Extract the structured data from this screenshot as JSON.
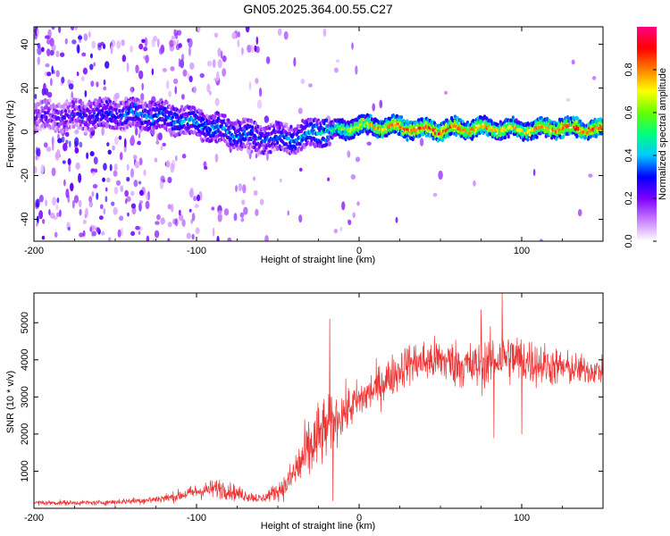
{
  "title": "GN05.2025.364.00.55.C27",
  "chart_data": [
    {
      "type": "heatmap",
      "name": "spectrogram",
      "xlabel": "Height of straight line (km)",
      "ylabel": "Frequency (Hz)",
      "xlim": [
        -200,
        150
      ],
      "ylim": [
        -50,
        48
      ],
      "xticks": [
        -200,
        -100,
        0,
        100
      ],
      "yticks": [
        -40,
        -20,
        0,
        20,
        40
      ],
      "colorbar": {
        "label": "Normalized spectral amplitude",
        "range": [
          0,
          1
        ],
        "ticks": [
          "0.0",
          "0.2",
          "0.4",
          "0.6",
          "0.8"
        ],
        "colors": [
          "#ffffff",
          "#c77dff",
          "#7b00ff",
          "#0000ff",
          "#00c8ff",
          "#00ff80",
          "#66ff00",
          "#ffff00",
          "#ff8000",
          "#ff0000",
          "#ff0080"
        ]
      },
      "ridge": [
        {
          "x": -195,
          "freq": 7,
          "amp": 0.2
        },
        {
          "x": -150,
          "freq": 8,
          "amp": 0.3
        },
        {
          "x": -130,
          "freq": 8,
          "amp": 0.35
        },
        {
          "x": -100,
          "freq": 4,
          "amp": 0.35
        },
        {
          "x": -80,
          "freq": 0,
          "amp": 0.35
        },
        {
          "x": -60,
          "freq": -3,
          "amp": 0.3
        },
        {
          "x": -40,
          "freq": -3,
          "amp": 0.35
        },
        {
          "x": -25,
          "freq": 0,
          "amp": 0.4
        },
        {
          "x": -10,
          "freq": 1,
          "amp": 0.6
        },
        {
          "x": 0,
          "freq": 3,
          "amp": 0.7
        },
        {
          "x": 25,
          "freq": 2,
          "amp": 0.8
        },
        {
          "x": 50,
          "freq": 1,
          "amp": 0.85
        },
        {
          "x": 75,
          "freq": 2,
          "amp": 0.75
        },
        {
          "x": 100,
          "freq": 1,
          "amp": 0.7
        },
        {
          "x": 125,
          "freq": 2,
          "amp": 0.8
        },
        {
          "x": 150,
          "freq": 1,
          "amp": 0.85
        }
      ]
    },
    {
      "type": "line",
      "name": "snr",
      "xlabel": "Height of straight line (km)",
      "ylabel": "SNR (10 * v/v)",
      "xlim": [
        -200,
        150
      ],
      "ylim": [
        0,
        5800
      ],
      "xticks": [
        -200,
        -100,
        0,
        100
      ],
      "yticks": [
        1000,
        2000,
        3000,
        4000,
        5000
      ],
      "color": "#ee3333",
      "envelope": [
        {
          "x": -200,
          "mean": 150,
          "spread": 60
        },
        {
          "x": -160,
          "mean": 150,
          "spread": 60
        },
        {
          "x": -130,
          "mean": 220,
          "spread": 90
        },
        {
          "x": -115,
          "mean": 300,
          "spread": 120
        },
        {
          "x": -100,
          "mean": 450,
          "spread": 180
        },
        {
          "x": -85,
          "mean": 550,
          "spread": 250
        },
        {
          "x": -75,
          "mean": 400,
          "spread": 180
        },
        {
          "x": -60,
          "mean": 250,
          "spread": 100
        },
        {
          "x": -45,
          "mean": 600,
          "spread": 300
        },
        {
          "x": -35,
          "mean": 1300,
          "spread": 700
        },
        {
          "x": -25,
          "mean": 1900,
          "spread": 900
        },
        {
          "x": -15,
          "mean": 2400,
          "spread": 600
        },
        {
          "x": 0,
          "mean": 2900,
          "spread": 500
        },
        {
          "x": 15,
          "mean": 3400,
          "spread": 500
        },
        {
          "x": 30,
          "mean": 3900,
          "spread": 500
        },
        {
          "x": 50,
          "mean": 4000,
          "spread": 550
        },
        {
          "x": 70,
          "mean": 3800,
          "spread": 600
        },
        {
          "x": 90,
          "mean": 4100,
          "spread": 650
        },
        {
          "x": 110,
          "mean": 3900,
          "spread": 550
        },
        {
          "x": 130,
          "mean": 3750,
          "spread": 400
        },
        {
          "x": 150,
          "mean": 3700,
          "spread": 300
        }
      ],
      "spikes": [
        {
          "x": -18,
          "y": 5100
        },
        {
          "x": -16,
          "y": 200
        },
        {
          "x": 75,
          "y": 5350
        },
        {
          "x": 88,
          "y": 5800
        },
        {
          "x": 83,
          "y": 1900
        },
        {
          "x": 100,
          "y": 2000
        }
      ]
    }
  ]
}
